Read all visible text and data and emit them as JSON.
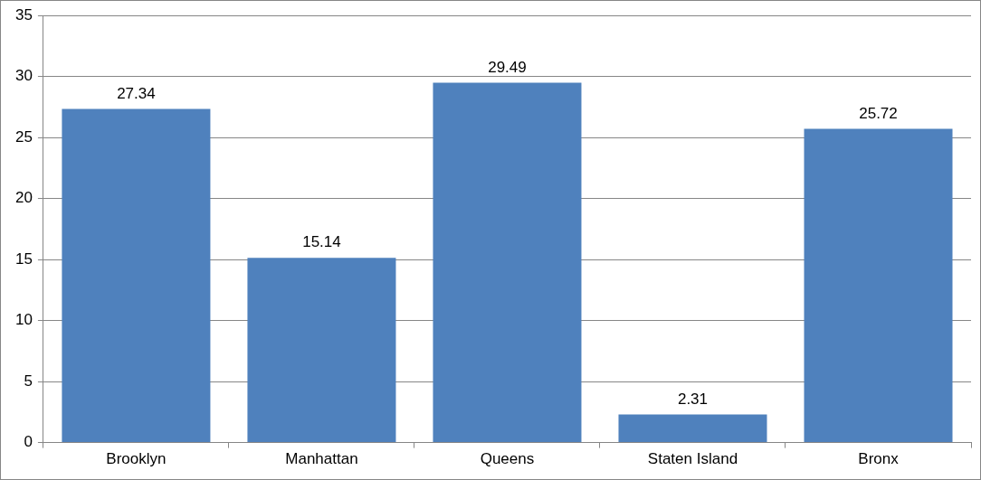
{
  "chart_data": {
    "type": "bar",
    "categories": [
      "Brooklyn",
      "Manhattan",
      "Queens",
      "Staten Island",
      "Bronx"
    ],
    "values": [
      27.34,
      15.14,
      29.49,
      2.31,
      25.72
    ],
    "color": "#4f81bd",
    "ylim": [
      0,
      35
    ],
    "yticks": [
      0,
      5,
      10,
      15,
      20,
      25,
      30,
      35
    ],
    "grid": "y",
    "data_labels": true,
    "legend": false
  }
}
